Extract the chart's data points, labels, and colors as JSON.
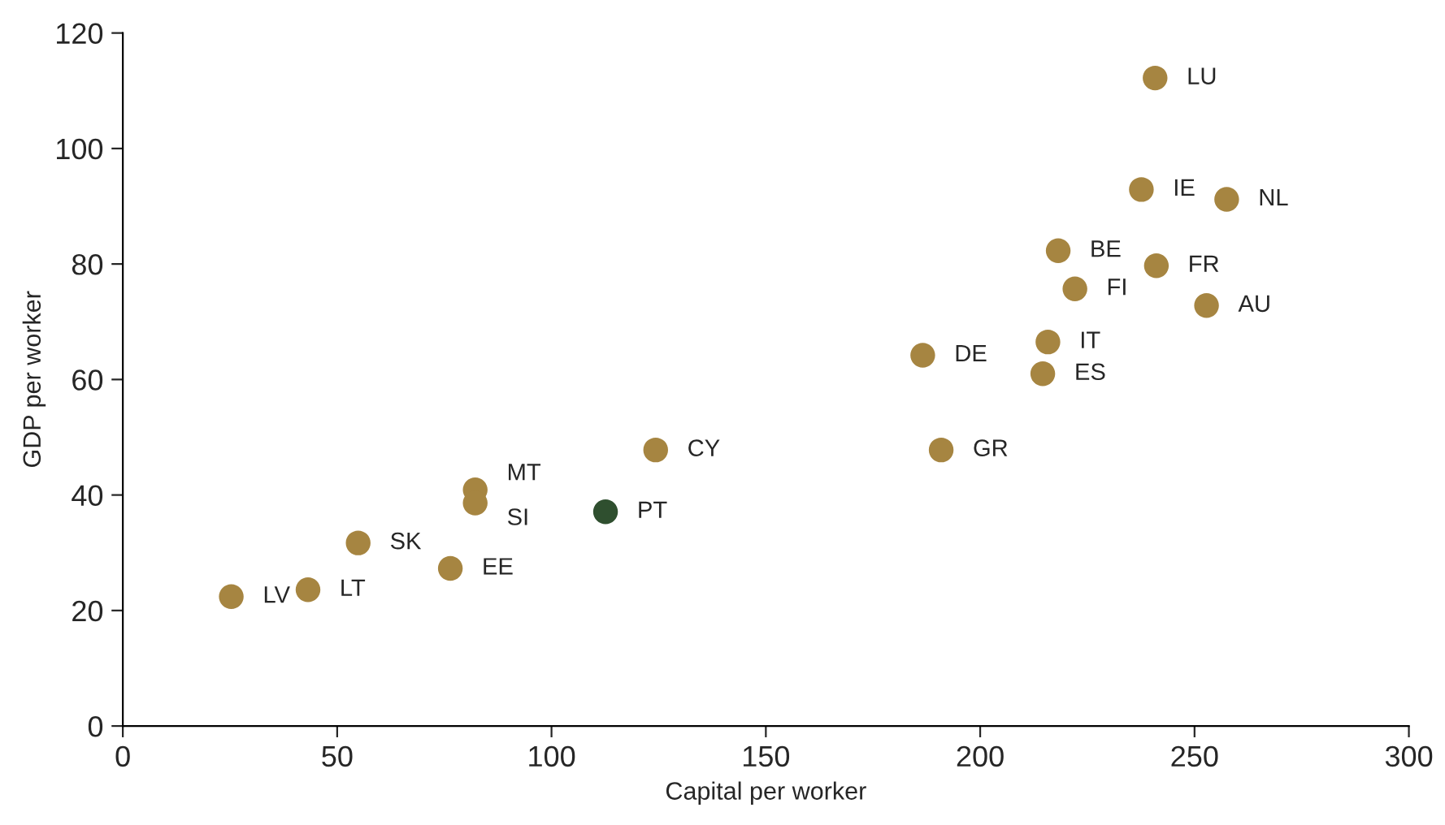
{
  "chart_data": {
    "type": "scatter",
    "xlabel": "Capital per worker",
    "ylabel": "GDP per worker",
    "x": [
      25.3,
      43.2,
      54.9,
      76.4,
      82.2,
      82.2,
      112.6,
      124.3,
      190.9,
      186.6,
      214.6,
      215.8,
      218.2,
      222.1,
      241.1,
      237.6,
      240.8,
      257.5,
      252.8
    ],
    "values": [
      22.4,
      23.6,
      31.7,
      27.3,
      40.9,
      38.6,
      37.1,
      47.8,
      47.8,
      64.2,
      61.0,
      66.5,
      82.3,
      75.7,
      79.7,
      92.9,
      112.2,
      91.2,
      72.8
    ],
    "colors": [
      "#a68541",
      "#a68541",
      "#a68541",
      "#a68541",
      "#a68541",
      "#a68541",
      "#2f4f2f",
      "#a68541",
      "#a68541",
      "#a68541",
      "#a68541",
      "#a68541",
      "#a68541",
      "#a68541",
      "#a68541",
      "#a68541",
      "#a68541",
      "#a68541",
      "#a68541"
    ],
    "annotations": [
      {
        "text": "LV",
        "x": 25.3,
        "y": 22.4
      },
      {
        "text": "LT",
        "x": 43.2,
        "y": 23.6
      },
      {
        "text": "SK",
        "x": 54.9,
        "y": 31.7
      },
      {
        "text": "EE",
        "x": 76.4,
        "y": 27.3
      },
      {
        "text": "MT",
        "x": 82.2,
        "y": 40.9
      },
      {
        "text": "SI",
        "x": 82.2,
        "y": 38.6
      },
      {
        "text": "PT",
        "x": 112.6,
        "y": 37.1
      },
      {
        "text": "CY",
        "x": 124.3,
        "y": 47.8
      },
      {
        "text": "GR",
        "x": 190.9,
        "y": 47.8
      },
      {
        "text": "DE",
        "x": 186.6,
        "y": 64.2
      },
      {
        "text": "ES",
        "x": 214.6,
        "y": 61.0
      },
      {
        "text": "IT",
        "x": 215.8,
        "y": 66.5
      },
      {
        "text": "BE",
        "x": 218.2,
        "y": 82.3
      },
      {
        "text": "FI",
        "x": 222.1,
        "y": 75.7
      },
      {
        "text": "FR",
        "x": 241.1,
        "y": 79.7
      },
      {
        "text": "IE",
        "x": 237.6,
        "y": 92.9
      },
      {
        "text": "LU",
        "x": 240.8,
        "y": 112.2
      },
      {
        "text": "NL",
        "x": 257.5,
        "y": 91.2
      },
      {
        "text": "AU",
        "x": 252.8,
        "y": 72.8
      }
    ],
    "xlim": [
      0,
      300
    ],
    "xticks": [
      0,
      50,
      100,
      150,
      200,
      250,
      300
    ],
    "ylim": [
      0,
      120
    ],
    "yticks": [
      0,
      20,
      40,
      60,
      80,
      100,
      120
    ],
    "marker": "circle",
    "grid": false,
    "legend": false
  }
}
